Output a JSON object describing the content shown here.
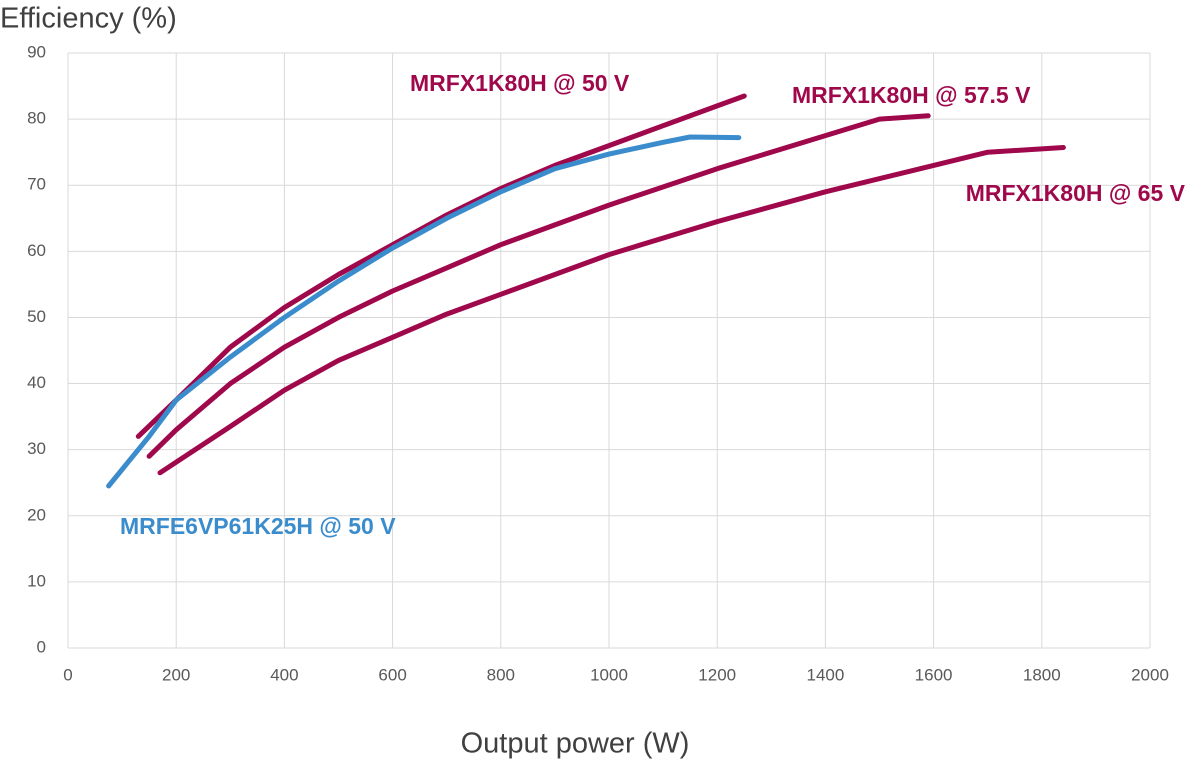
{
  "chart_data": {
    "type": "line",
    "y_label": "Efficiency (%)",
    "x_label": "Output power (W)",
    "xlim": [
      0,
      2000
    ],
    "xticks": [
      0,
      200,
      400,
      600,
      800,
      1000,
      1200,
      1400,
      1600,
      1800,
      2000
    ],
    "ylim": [
      0,
      90
    ],
    "yticks": [
      0,
      10,
      20,
      30,
      40,
      50,
      60,
      70,
      80,
      90
    ],
    "grid": true,
    "series": [
      {
        "name": "MRFX1K80H @ 50 V",
        "color": "#a0084c",
        "x": [
          130,
          200,
          300,
          400,
          500,
          600,
          700,
          800,
          900,
          1000,
          1100,
          1200,
          1250
        ],
        "values": [
          32,
          37.5,
          45.5,
          51.5,
          56.5,
          61,
          65.5,
          69.5,
          73,
          76,
          79,
          82,
          83.5
        ]
      },
      {
        "name": "MRFX1K80H @ 57.5 V",
        "color": "#a0084c",
        "x": [
          150,
          200,
          300,
          400,
          500,
          600,
          700,
          800,
          900,
          1000,
          1200,
          1400,
          1500,
          1590
        ],
        "values": [
          29,
          33,
          40,
          45.5,
          50,
          54,
          57.5,
          61,
          64,
          67,
          72.5,
          77.5,
          80,
          80.5
        ]
      },
      {
        "name": "MRFX1K80H @ 65 V",
        "color": "#a0084c",
        "x": [
          170,
          300,
          400,
          500,
          600,
          700,
          800,
          900,
          1000,
          1200,
          1400,
          1600,
          1700,
          1840
        ],
        "values": [
          26.5,
          33.5,
          39,
          43.5,
          47,
          50.5,
          53.5,
          56.5,
          59.5,
          64.5,
          69,
          73,
          75,
          75.7
        ]
      },
      {
        "name": "MRFE6VP61K25H @ 50 V",
        "color": "#3b8ccc",
        "x": [
          75,
          150,
          200,
          300,
          400,
          500,
          600,
          700,
          800,
          900,
          1000,
          1100,
          1150,
          1240
        ],
        "values": [
          24.5,
          32,
          37.5,
          44,
          50,
          55.5,
          60.5,
          65,
          69,
          72.5,
          74.7,
          76.5,
          77.3,
          77.2
        ]
      }
    ]
  }
}
